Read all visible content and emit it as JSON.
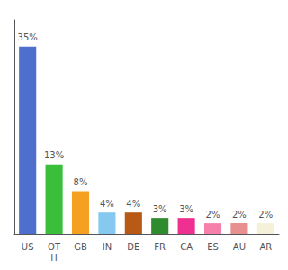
{
  "chart_data": {
    "type": "bar",
    "categories": [
      "US",
      "OT\nH",
      "GB",
      "IN",
      "DE",
      "FR",
      "CA",
      "ES",
      "AU",
      "AR"
    ],
    "values": [
      35,
      13,
      8,
      4,
      4,
      3,
      3,
      2,
      2,
      2
    ],
    "value_labels": [
      "35%",
      "13%",
      "8%",
      "4%",
      "4%",
      "3%",
      "3%",
      "2%",
      "2%",
      "2%"
    ],
    "colors": [
      "#4f6fce",
      "#3abf3a",
      "#f5a020",
      "#85c8f0",
      "#b85a15",
      "#2e8b2e",
      "#f03090",
      "#f580aa",
      "#e89090",
      "#f5f0d8"
    ],
    "ylim": [
      0,
      40
    ],
    "data_labels": true,
    "tick_labels": "x",
    "grid": false
  }
}
